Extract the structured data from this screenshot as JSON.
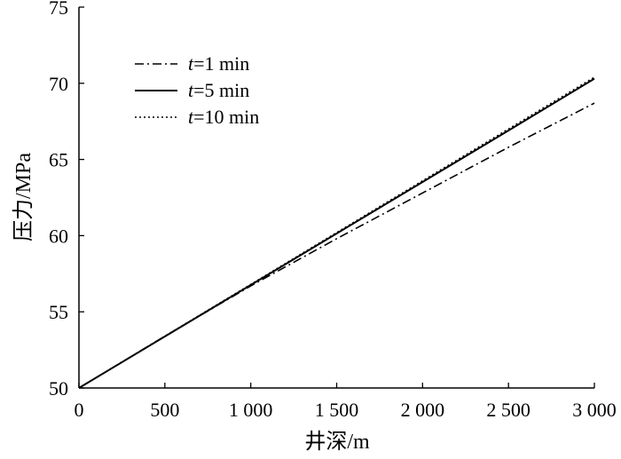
{
  "chart_data": {
    "type": "line",
    "xlabel": "井深/m",
    "ylabel": "压力/MPa",
    "xlim": [
      0,
      3000
    ],
    "ylim": [
      50,
      75
    ],
    "x_ticks": [
      0,
      500,
      1000,
      1500,
      2000,
      2500,
      3000
    ],
    "x_tick_labels": [
      "0",
      "500",
      "1 000",
      "1 500",
      "2 000",
      "2 500",
      "3 000"
    ],
    "y_ticks": [
      50,
      55,
      60,
      65,
      70,
      75
    ],
    "y_tick_labels": [
      "50",
      "55",
      "60",
      "65",
      "70",
      "75"
    ],
    "grid": false,
    "legend_position": "top-left",
    "series": [
      {
        "name": "t=1 min",
        "name_var": "t",
        "name_rest": "=1 min",
        "style": "dashdot",
        "color": "#000000",
        "x": [
          0,
          500,
          1000,
          1500,
          2000,
          2500,
          3000
        ],
        "y": [
          50,
          53.4,
          56.7,
          59.8,
          62.8,
          65.8,
          68.7
        ]
      },
      {
        "name": "t=5 min",
        "name_var": "t",
        "name_rest": "=5 min",
        "style": "solid",
        "color": "#000000",
        "x": [
          0,
          500,
          1000,
          1500,
          2000,
          2500,
          3000
        ],
        "y": [
          50,
          53.38,
          56.76,
          60.14,
          63.52,
          66.9,
          70.3
        ]
      },
      {
        "name": "t=10 min",
        "name_var": "t",
        "name_rest": "=10 min",
        "style": "dotted",
        "color": "#000000",
        "x": [
          0,
          500,
          1000,
          1500,
          2000,
          2500,
          3000
        ],
        "y": [
          50,
          53.4,
          56.8,
          60.2,
          63.6,
          67.0,
          70.4
        ]
      }
    ]
  }
}
